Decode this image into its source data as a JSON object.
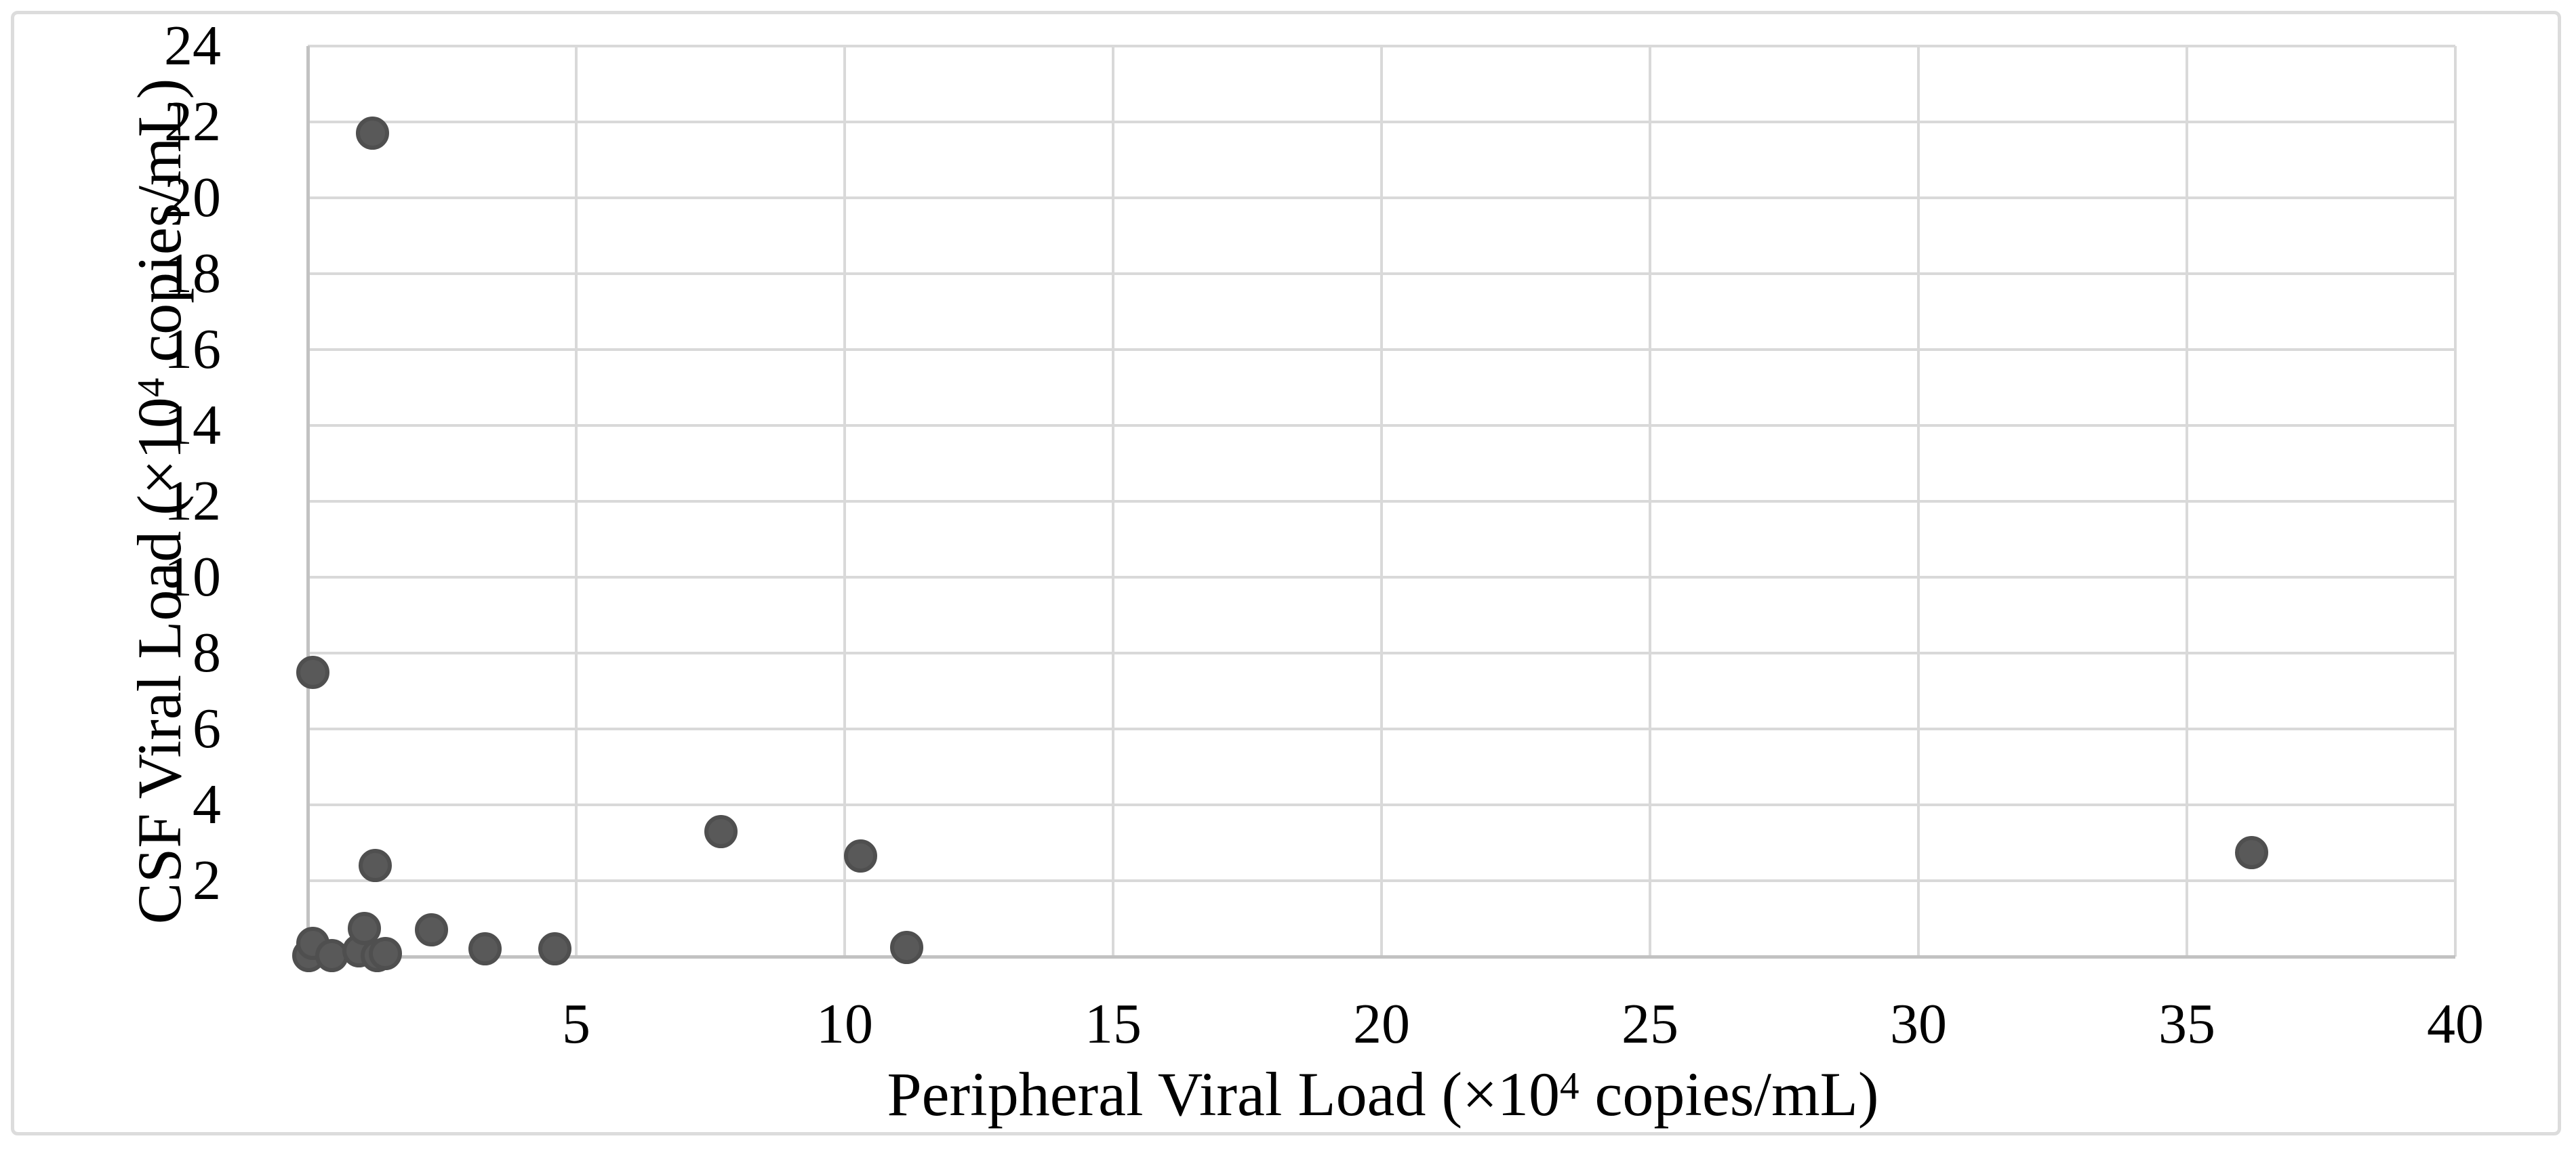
{
  "chart_data": {
    "type": "scatter",
    "title": "",
    "legend": "none",
    "grid": "on",
    "x_axis": {
      "label_pre": "Peripheral Viral Load (×10",
      "label_sup": "4",
      "label_post": " copies/mL)",
      "ticks": [
        5,
        10,
        15,
        20,
        25,
        30,
        35,
        40
      ],
      "range": [
        0,
        40
      ]
    },
    "y_axis": {
      "label_pre": "CSF Viral Load (×10",
      "label_sup": "4",
      "label_post": " copies/mL)",
      "ticks": [
        2,
        4,
        6,
        8,
        10,
        12,
        14,
        16,
        18,
        20,
        22,
        24
      ],
      "range": [
        0,
        24
      ]
    },
    "points": [
      {
        "x": 0.02,
        "y": 0.02
      },
      {
        "x": 0.1,
        "y": 0.35
      },
      {
        "x": 0.1,
        "y": 7.5
      },
      {
        "x": 0.45,
        "y": 0.02
      },
      {
        "x": 0.95,
        "y": 0.15
      },
      {
        "x": 1.05,
        "y": 0.75
      },
      {
        "x": 1.2,
        "y": 21.7
      },
      {
        "x": 1.25,
        "y": 2.4
      },
      {
        "x": 1.3,
        "y": 0.02
      },
      {
        "x": 1.45,
        "y": 0.08
      },
      {
        "x": 2.3,
        "y": 0.7
      },
      {
        "x": 3.3,
        "y": 0.2
      },
      {
        "x": 4.6,
        "y": 0.2
      },
      {
        "x": 7.7,
        "y": 3.3
      },
      {
        "x": 10.3,
        "y": 2.65
      },
      {
        "x": 11.15,
        "y": 0.25
      },
      {
        "x": 36.2,
        "y": 2.75
      }
    ],
    "colors": {
      "marker": "#595959",
      "marker_border": "#4f4f4f",
      "gridline": "#d9d9d9",
      "axis_line": "#c2c2c2",
      "figure_border": "#dcdcdc",
      "text": "#000000",
      "background": "#ffffff"
    }
  }
}
